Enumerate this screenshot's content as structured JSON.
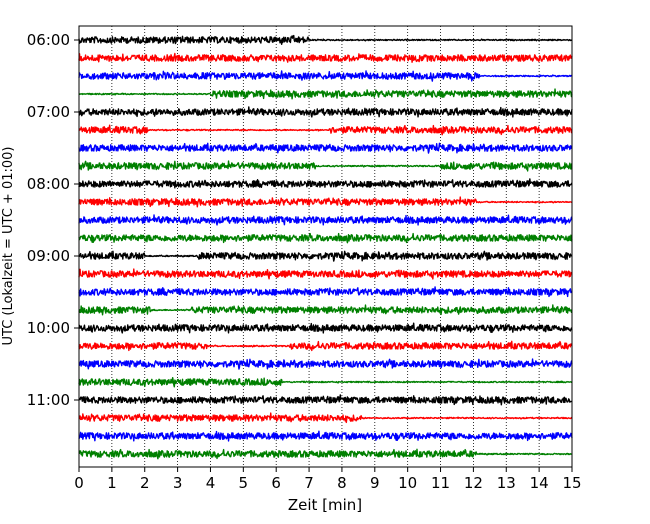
{
  "chart_data": {
    "type": "line",
    "title": "",
    "xlabel": "Zeit  [min]",
    "ylabel": "UTC (Lokalzeit = UTC + 01:00)",
    "xlim": [
      0,
      15
    ],
    "x_ticks": [
      "0",
      "1",
      "2",
      "3",
      "4",
      "5",
      "6",
      "7",
      "8",
      "9",
      "10",
      "11",
      "12",
      "13",
      "14",
      "15"
    ],
    "y_tick_labels": [
      "06:00",
      "07:00",
      "08:00",
      "09:00",
      "10:00",
      "11:00"
    ],
    "grid": "vertical-dotted",
    "legend": "none",
    "trace_interval_minutes": 15,
    "start_time": "06:00",
    "color_cycle": [
      "#000000",
      "#ff0000",
      "#0000ff",
      "#008000"
    ],
    "series": [
      {
        "start": "06:00",
        "color": "#000000",
        "quiet_from": 7.0,
        "quiet_to": 15.0
      },
      {
        "start": "06:15",
        "color": "#ff0000",
        "quiet_from": null,
        "quiet_to": null
      },
      {
        "start": "06:30",
        "color": "#0000ff",
        "quiet_from": 12.2,
        "quiet_to": 15.0
      },
      {
        "start": "06:45",
        "color": "#008000",
        "quiet_from": 0.0,
        "quiet_to": 4.0
      },
      {
        "start": "07:00",
        "color": "#000000",
        "quiet_from": null,
        "quiet_to": null
      },
      {
        "start": "07:15",
        "color": "#ff0000",
        "quiet_from": 2.1,
        "quiet_to": 7.6
      },
      {
        "start": "07:30",
        "color": "#0000ff",
        "quiet_from": null,
        "quiet_to": null
      },
      {
        "start": "07:45",
        "color": "#008000",
        "quiet_from": 7.2,
        "quiet_to": 11.0
      },
      {
        "start": "08:00",
        "color": "#000000",
        "quiet_from": null,
        "quiet_to": null
      },
      {
        "start": "08:15",
        "color": "#ff0000",
        "quiet_from": 12.1,
        "quiet_to": 15.0
      },
      {
        "start": "08:30",
        "color": "#0000ff",
        "quiet_from": null,
        "quiet_to": null
      },
      {
        "start": "08:45",
        "color": "#008000",
        "quiet_from": null,
        "quiet_to": null
      },
      {
        "start": "09:00",
        "color": "#000000",
        "quiet_from": 2.0,
        "quiet_to": 3.6
      },
      {
        "start": "09:15",
        "color": "#ff0000",
        "quiet_from": null,
        "quiet_to": null
      },
      {
        "start": "09:30",
        "color": "#0000ff",
        "quiet_from": null,
        "quiet_to": null
      },
      {
        "start": "09:45",
        "color": "#008000",
        "quiet_from": 2.2,
        "quiet_to": 3.4
      },
      {
        "start": "10:00",
        "color": "#000000",
        "quiet_from": null,
        "quiet_to": null
      },
      {
        "start": "10:15",
        "color": "#ff0000",
        "quiet_from": 3.9,
        "quiet_to": 6.4
      },
      {
        "start": "10:30",
        "color": "#0000ff",
        "quiet_from": null,
        "quiet_to": null
      },
      {
        "start": "10:45",
        "color": "#008000",
        "quiet_from": 6.2,
        "quiet_to": 15.0
      },
      {
        "start": "11:00",
        "color": "#000000",
        "quiet_from": null,
        "quiet_to": null
      },
      {
        "start": "11:15",
        "color": "#ff0000",
        "quiet_from": 8.6,
        "quiet_to": 15.0
      },
      {
        "start": "11:30",
        "color": "#0000ff",
        "quiet_from": null,
        "quiet_to": null
      },
      {
        "start": "11:45",
        "color": "#008000",
        "quiet_from": 12.1,
        "quiet_to": 15.0
      }
    ]
  }
}
